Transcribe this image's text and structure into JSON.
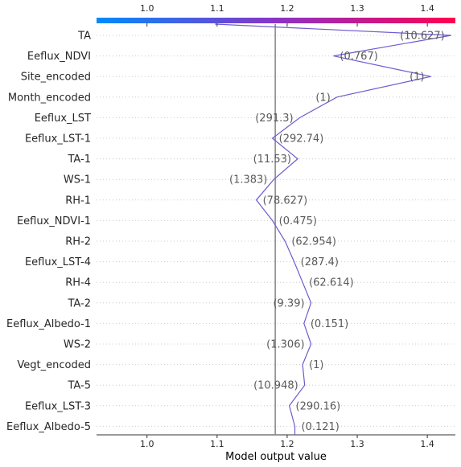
{
  "chart_data": {
    "type": "line",
    "xlabel": "Model output value",
    "xlim": [
      0.928,
      1.44
    ],
    "x_ticks": [
      1.0,
      1.1,
      1.2,
      1.3,
      1.4
    ],
    "x_tick_labels": [
      "1.0",
      "1.1",
      "1.2",
      "1.3",
      "1.4"
    ],
    "base_value": 1.183,
    "start_value": 1.097,
    "grid": true,
    "colorbar": {
      "position": "top",
      "colors": [
        "#008bfb",
        "#8a33c7",
        "#ff0052"
      ]
    },
    "line_color": "#6d5ccf",
    "features": [
      {
        "name": "TA",
        "value_label": "(10.627)",
        "output": 1.434
      },
      {
        "name": "Eeflux_NDVI",
        "value_label": "(0.767)",
        "output": 1.266
      },
      {
        "name": "Site_encoded",
        "value_label": "(1)",
        "output": 1.405
      },
      {
        "name": "Month_encoded",
        "value_label": "(1)",
        "output": 1.271
      },
      {
        "name": "Eeflux_LST",
        "value_label": "(291.3)",
        "output": 1.218
      },
      {
        "name": "Eeflux_LST-1",
        "value_label": "(292.74)",
        "output": 1.179
      },
      {
        "name": "TA-1",
        "value_label": "(11.53)",
        "output": 1.215
      },
      {
        "name": "WS-1",
        "value_label": "(1.383)",
        "output": 1.181
      },
      {
        "name": "RH-1",
        "value_label": "(78.627)",
        "output": 1.156
      },
      {
        "name": "Eeflux_NDVI-1",
        "value_label": "(0.475)",
        "output": 1.179
      },
      {
        "name": "RH-2",
        "value_label": "(62.954)",
        "output": 1.197
      },
      {
        "name": "Eeflux_LST-4",
        "value_label": "(287.4)",
        "output": 1.21
      },
      {
        "name": "RH-4",
        "value_label": "(62.614)",
        "output": 1.222
      },
      {
        "name": "TA-2",
        "value_label": "(9.39)",
        "output": 1.234
      },
      {
        "name": "Eeflux_Albedo-1",
        "value_label": "(0.151)",
        "output": 1.224
      },
      {
        "name": "WS-2",
        "value_label": "(1.306)",
        "output": 1.234
      },
      {
        "name": "Vegt_encoded",
        "value_label": "(1)",
        "output": 1.222
      },
      {
        "name": "TA-5",
        "value_label": "(10.948)",
        "output": 1.225
      },
      {
        "name": "Eeflux_LST-3",
        "value_label": "(290.16)",
        "output": 1.203
      },
      {
        "name": "Eeflux_Albedo-5",
        "value_label": "(0.121)",
        "output": 1.211
      }
    ]
  }
}
